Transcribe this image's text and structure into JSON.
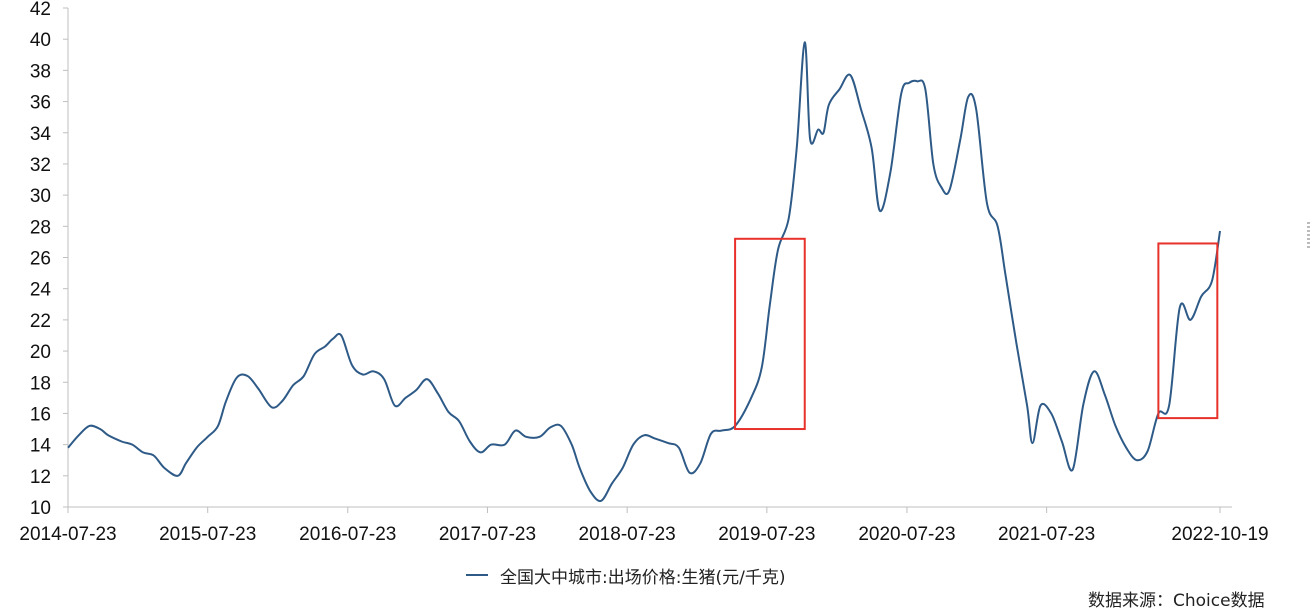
{
  "chart_data": {
    "type": "line",
    "title": "",
    "xlabel": "",
    "ylabel": "",
    "ylim": [
      10,
      42
    ],
    "y_ticks": [
      10,
      12,
      14,
      16,
      18,
      20,
      22,
      24,
      26,
      28,
      30,
      32,
      34,
      36,
      38,
      40,
      42
    ],
    "x_ticks": [
      "2014-07-23",
      "2015-07-23",
      "2016-07-23",
      "2017-07-23",
      "2018-07-23",
      "2019-07-23",
      "2020-07-23",
      "2021-07-23",
      "2022-10-19"
    ],
    "x_range": [
      "2014-07-23",
      "2022-10-19"
    ],
    "grid": false,
    "legend_position": "bottom-center",
    "series": [
      {
        "name": "全国大中城市:出场价格:生猪(元/千克)",
        "color": "#2e5a87",
        "points": [
          [
            "2014-07-23",
            13.8
          ],
          [
            "2014-08-20",
            14.6
          ],
          [
            "2014-09-17",
            15.2
          ],
          [
            "2014-10-15",
            15.0
          ],
          [
            "2014-11-05",
            14.6
          ],
          [
            "2014-12-10",
            14.2
          ],
          [
            "2015-01-07",
            14.0
          ],
          [
            "2015-02-04",
            13.5
          ],
          [
            "2015-03-04",
            13.3
          ],
          [
            "2015-04-01",
            12.5
          ],
          [
            "2015-05-06",
            12.0
          ],
          [
            "2015-05-27",
            12.8
          ],
          [
            "2015-06-24",
            13.8
          ],
          [
            "2015-07-23",
            14.5
          ],
          [
            "2015-08-19",
            15.2
          ],
          [
            "2015-09-09",
            16.8
          ],
          [
            "2015-10-07",
            18.3
          ],
          [
            "2015-11-04",
            18.4
          ],
          [
            "2015-12-02",
            17.6
          ],
          [
            "2016-01-06",
            16.4
          ],
          [
            "2016-02-03",
            16.8
          ],
          [
            "2016-03-02",
            17.8
          ],
          [
            "2016-03-30",
            18.4
          ],
          [
            "2016-04-27",
            19.8
          ],
          [
            "2016-05-25",
            20.3
          ],
          [
            "2016-06-15",
            20.8
          ],
          [
            "2016-07-06",
            21.0
          ],
          [
            "2016-08-03",
            19.1
          ],
          [
            "2016-08-31",
            18.5
          ],
          [
            "2016-09-28",
            18.7
          ],
          [
            "2016-10-26",
            18.2
          ],
          [
            "2016-11-23",
            16.5
          ],
          [
            "2016-12-21",
            17.0
          ],
          [
            "2017-01-18",
            17.5
          ],
          [
            "2017-02-15",
            18.2
          ],
          [
            "2017-03-15",
            17.3
          ],
          [
            "2017-04-12",
            16.1
          ],
          [
            "2017-05-10",
            15.5
          ],
          [
            "2017-06-07",
            14.2
          ],
          [
            "2017-07-05",
            13.5
          ],
          [
            "2017-08-02",
            14.0
          ],
          [
            "2017-09-06",
            14.0
          ],
          [
            "2017-10-04",
            14.9
          ],
          [
            "2017-11-01",
            14.5
          ],
          [
            "2017-12-06",
            14.5
          ],
          [
            "2018-01-03",
            15.1
          ],
          [
            "2018-01-31",
            15.2
          ],
          [
            "2018-02-28",
            14.0
          ],
          [
            "2018-03-21",
            12.5
          ],
          [
            "2018-04-18",
            11.0
          ],
          [
            "2018-05-16",
            10.4
          ],
          [
            "2018-06-13",
            11.5
          ],
          [
            "2018-07-11",
            12.5
          ],
          [
            "2018-08-08",
            14.0
          ],
          [
            "2018-09-05",
            14.6
          ],
          [
            "2018-10-03",
            14.4
          ],
          [
            "2018-11-07",
            14.1
          ],
          [
            "2018-12-05",
            13.8
          ],
          [
            "2019-01-02",
            12.2
          ],
          [
            "2019-01-30",
            12.8
          ],
          [
            "2019-02-27",
            14.7
          ],
          [
            "2019-03-27",
            14.9
          ],
          [
            "2019-05-01",
            15.2
          ],
          [
            "2019-06-12",
            17.0
          ],
          [
            "2019-07-10",
            19.0
          ],
          [
            "2019-07-31",
            23.0
          ],
          [
            "2019-08-21",
            26.5
          ],
          [
            "2019-09-18",
            28.5
          ],
          [
            "2019-10-09",
            33.0
          ],
          [
            "2019-10-30",
            39.8
          ],
          [
            "2019-11-13",
            33.6
          ],
          [
            "2019-12-04",
            34.2
          ],
          [
            "2019-12-18",
            34.0
          ],
          [
            "2020-01-01",
            35.8
          ],
          [
            "2020-01-29",
            36.8
          ],
          [
            "2020-02-26",
            37.7
          ],
          [
            "2020-03-25",
            35.5
          ],
          [
            "2020-04-22",
            33.0
          ],
          [
            "2020-05-13",
            29.0
          ],
          [
            "2020-06-10",
            31.5
          ],
          [
            "2020-07-08",
            36.5
          ],
          [
            "2020-07-29",
            37.2
          ],
          [
            "2020-08-19",
            37.3
          ],
          [
            "2020-09-09",
            36.8
          ],
          [
            "2020-09-30",
            32.0
          ],
          [
            "2020-10-21",
            30.5
          ],
          [
            "2020-11-11",
            30.3
          ],
          [
            "2020-12-09",
            33.5
          ],
          [
            "2020-12-30",
            36.3
          ],
          [
            "2021-01-20",
            35.5
          ],
          [
            "2021-02-17",
            29.5
          ],
          [
            "2021-03-17",
            28.0
          ],
          [
            "2021-04-07",
            24.8
          ],
          [
            "2021-05-05",
            20.5
          ],
          [
            "2021-06-02",
            16.5
          ],
          [
            "2021-06-16",
            14.1
          ],
          [
            "2021-07-07",
            16.5
          ],
          [
            "2021-08-04",
            16.0
          ],
          [
            "2021-09-01",
            14.2
          ],
          [
            "2021-09-29",
            12.4
          ],
          [
            "2021-10-27",
            16.6
          ],
          [
            "2021-11-24",
            18.7
          ],
          [
            "2021-12-22",
            17.2
          ],
          [
            "2022-01-19",
            15.2
          ],
          [
            "2022-02-16",
            13.8
          ],
          [
            "2022-03-16",
            13.0
          ],
          [
            "2022-04-13",
            13.6
          ],
          [
            "2022-05-11",
            16.0
          ],
          [
            "2022-06-08",
            16.5
          ],
          [
            "2022-07-06",
            22.8
          ],
          [
            "2022-08-03",
            22.0
          ],
          [
            "2022-08-31",
            23.5
          ],
          [
            "2022-09-28",
            24.5
          ],
          [
            "2022-10-19",
            27.7
          ]
        ]
      }
    ],
    "highlight_boxes": [
      {
        "x_from": "2019-05-01",
        "x_to": "2019-10-30",
        "y_from": 15.0,
        "y_to": 27.2
      },
      {
        "x_from": "2022-05-11",
        "x_to": "2022-10-12",
        "y_from": 15.7,
        "y_to": 26.9
      }
    ]
  },
  "legend_label": "全国大中城市:出场价格:生猪(元/千克)",
  "source_note": "数据来源：Choice数据"
}
